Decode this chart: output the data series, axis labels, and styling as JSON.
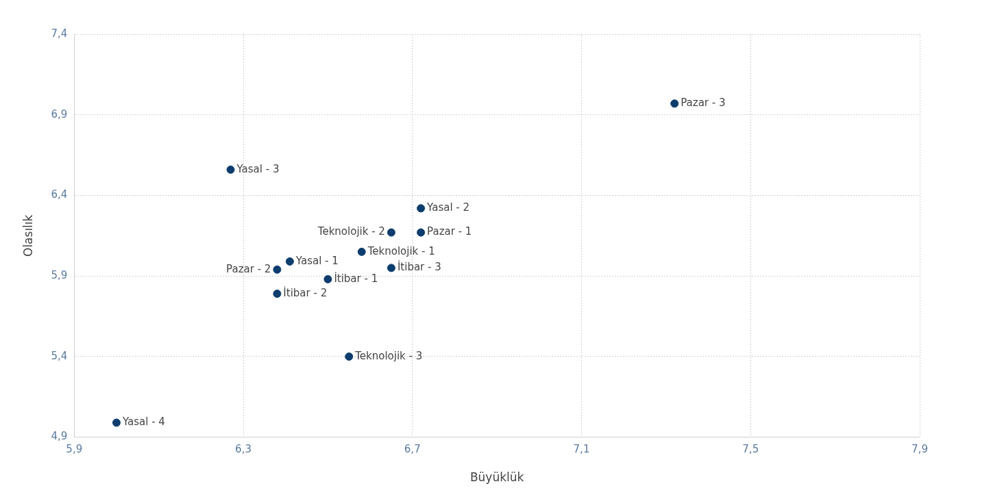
{
  "chart_data": {
    "type": "scatter",
    "xlabel": "Büyüklük",
    "ylabel": "Olasılık",
    "xlim": [
      5.9,
      7.9
    ],
    "ylim": [
      4.9,
      7.4
    ],
    "xticks": [
      {
        "value": 5.9,
        "label": "5,9"
      },
      {
        "value": 6.3,
        "label": "6,3"
      },
      {
        "value": 6.7,
        "label": "6,7"
      },
      {
        "value": 7.1,
        "label": "7,1"
      },
      {
        "value": 7.5,
        "label": "7,5"
      },
      {
        "value": 7.9,
        "label": "7,9"
      }
    ],
    "yticks": [
      {
        "value": 4.9,
        "label": "4,9"
      },
      {
        "value": 5.4,
        "label": "5,4"
      },
      {
        "value": 5.9,
        "label": "5,9"
      },
      {
        "value": 6.4,
        "label": "6,4"
      },
      {
        "value": 6.9,
        "label": "6,9"
      },
      {
        "value": 7.4,
        "label": "7,4"
      }
    ],
    "grid": true,
    "legend": false,
    "marker": "circle",
    "series": [
      {
        "color": "#0d3d6e",
        "x": [
          7.32,
          6.27,
          6.72,
          6.65,
          6.72,
          6.58,
          6.41,
          6.38,
          6.65,
          6.5,
          6.38,
          6.55,
          6.0
        ],
        "values": [
          6.97,
          6.56,
          6.32,
          6.17,
          6.17,
          6.05,
          5.99,
          5.94,
          5.95,
          5.88,
          5.79,
          5.4,
          4.99
        ]
      }
    ],
    "annotations": [
      {
        "text": "Pazar - 3",
        "x": 7.32,
        "y": 6.97
      },
      {
        "text": "Yasal - 3",
        "x": 6.27,
        "y": 6.56
      },
      {
        "text": "Yasal - 2",
        "x": 6.72,
        "y": 6.32
      },
      {
        "text": "Teknolojik - 2",
        "x": 6.65,
        "y": 6.17
      },
      {
        "text": "Pazar - 1",
        "x": 6.72,
        "y": 6.17
      },
      {
        "text": "Teknolojik - 1",
        "x": 6.58,
        "y": 6.05
      },
      {
        "text": "Yasal - 1",
        "x": 6.41,
        "y": 5.99
      },
      {
        "text": "Pazar - 2",
        "x": 6.38,
        "y": 5.94
      },
      {
        "text": "İtibar - 3",
        "x": 6.65,
        "y": 5.95
      },
      {
        "text": "İtibar - 1",
        "x": 6.5,
        "y": 5.88
      },
      {
        "text": "İtibar - 2",
        "x": 6.38,
        "y": 5.79
      },
      {
        "text": "Teknolojik - 3",
        "x": 6.55,
        "y": 5.4
      },
      {
        "text": "Yasal - 4",
        "x": 6.0,
        "y": 4.99
      }
    ]
  }
}
